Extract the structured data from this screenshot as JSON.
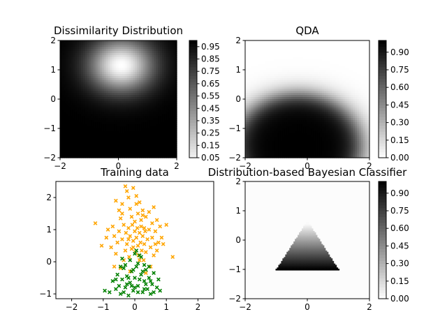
{
  "figure": {
    "background": "#ffffff",
    "line_color": "#000000"
  },
  "chart_data": [
    {
      "type": "heatmap",
      "title": "Dissimilarity Distribution",
      "xlim": [
        -2,
        2
      ],
      "ylim": [
        -2,
        2
      ],
      "xticks": [
        -2,
        0,
        2
      ],
      "yticks": [
        -2,
        -1,
        0,
        1,
        2
      ],
      "colormap": "gray (0 = white, 1 = black)",
      "field": "1 - exp(-((x - 0.1)^2 / 1.3 + (y - 1.15)^2 / 0.9))",
      "colorbar": {
        "range": [
          0.05,
          1.0
        ],
        "ticks": [
          "0.05",
          "0.15",
          "0.25",
          "0.35",
          "0.45",
          "0.55",
          "0.65",
          "0.75",
          "0.85",
          "0.95"
        ]
      }
    },
    {
      "type": "heatmap",
      "title": "QDA",
      "xlim": [
        -2,
        2
      ],
      "ylim": [
        -2,
        2
      ],
      "xticks": [
        -2,
        0,
        2
      ],
      "yticks": [
        -2,
        -1,
        0,
        1,
        2
      ],
      "colormap": "gray_r (0 = white, 1 = black)",
      "field": "high (dark) near (-0.3, -1.6), fading to 0 outside radius ~2",
      "colorbar": {
        "range": [
          0.0,
          1.0
        ],
        "ticks": [
          "0.00",
          "0.15",
          "0.30",
          "0.45",
          "0.60",
          "0.75",
          "0.90"
        ]
      }
    },
    {
      "type": "scatter",
      "title": "Training data",
      "xlim": [
        -2.5,
        2.5
      ],
      "ylim": [
        -1.15,
        2.5
      ],
      "xticks": [
        -2,
        -1,
        0,
        1,
        2
      ],
      "yticks": [
        -1,
        0,
        1,
        2
      ],
      "marker": "x",
      "series": [
        {
          "color": "#ffa500",
          "points": [
            [
              -0.6,
              1.9
            ],
            [
              -0.5,
              1.6
            ],
            [
              -0.45,
              1.35
            ],
            [
              -0.4,
              1.5
            ],
            [
              -0.3,
              2.35
            ],
            [
              -0.25,
              2.2
            ],
            [
              -0.2,
              2.0
            ],
            [
              -0.15,
              1.65
            ],
            [
              -0.1,
              1.4
            ],
            [
              -0.05,
              2.3
            ],
            [
              0.0,
              1.25
            ],
            [
              0.05,
              1.8
            ],
            [
              0.1,
              1.5
            ],
            [
              0.15,
              1.85
            ],
            [
              0.2,
              1.3
            ],
            [
              0.25,
              1.6
            ],
            [
              0.3,
              1.05
            ],
            [
              0.35,
              1.4
            ],
            [
              0.45,
              1.55
            ],
            [
              0.55,
              1.2
            ],
            [
              0.6,
              1.7
            ],
            [
              0.65,
              0.95
            ],
            [
              0.7,
              1.3
            ],
            [
              0.8,
              1.1
            ],
            [
              0.85,
              0.75
            ],
            [
              0.9,
              0.55
            ],
            [
              1.0,
              1.15
            ],
            [
              1.2,
              0.15
            ],
            [
              -1.25,
              1.2
            ],
            [
              -1.05,
              0.5
            ],
            [
              -0.9,
              0.75
            ],
            [
              -0.85,
              1.0
            ],
            [
              -0.75,
              0.45
            ],
            [
              -0.7,
              1.1
            ],
            [
              -0.65,
              0.8
            ],
            [
              -0.6,
              0.25
            ],
            [
              -0.55,
              0.6
            ],
            [
              -0.5,
              0.95
            ],
            [
              -0.45,
              -0.2
            ],
            [
              -0.4,
              0.7
            ],
            [
              -0.35,
              1.15
            ],
            [
              -0.3,
              0.35
            ],
            [
              -0.28,
              0.9
            ],
            [
              -0.25,
              0.55
            ],
            [
              -0.2,
              1.05
            ],
            [
              -0.18,
              0.15
            ],
            [
              -0.15,
              0.8
            ],
            [
              -0.1,
              0.4
            ],
            [
              -0.08,
              1.15
            ],
            [
              -0.05,
              0.65
            ],
            [
              0.0,
              0.95
            ],
            [
              0.02,
              0.3
            ],
            [
              0.05,
              0.75
            ],
            [
              0.08,
              1.05
            ],
            [
              0.1,
              0.5
            ],
            [
              0.12,
              0.2
            ],
            [
              0.15,
              0.9
            ],
            [
              0.18,
              0.6
            ],
            [
              0.2,
              1.1
            ],
            [
              0.22,
              0.35
            ],
            [
              0.25,
              0.8
            ],
            [
              0.28,
              0.05
            ],
            [
              0.3,
              0.55
            ],
            [
              0.33,
              0.95
            ],
            [
              0.35,
              0.3
            ],
            [
              0.4,
              0.7
            ],
            [
              0.45,
              1.0
            ],
            [
              0.5,
              0.45
            ],
            [
              0.55,
              0.75
            ],
            [
              0.6,
              0.2
            ],
            [
              0.65,
              0.55
            ],
            [
              0.7,
              0.35
            ],
            [
              0.75,
              0.6
            ],
            [
              0.5,
              -0.15
            ],
            [
              -0.65,
              -0.15
            ],
            [
              -0.15,
              -0.3
            ],
            [
              0.35,
              -0.35
            ],
            [
              -0.35,
              0.05
            ],
            [
              0.15,
              0.05
            ],
            [
              -0.05,
              0.45
            ],
            [
              -0.2,
              0.7
            ],
            [
              0.25,
              1.45
            ],
            [
              -0.4,
              1.8
            ],
            [
              0.05,
              2.05
            ]
          ]
        },
        {
          "color": "#008000",
          "points": [
            [
              -0.95,
              -0.9
            ],
            [
              -0.8,
              -0.95
            ],
            [
              -0.7,
              -0.6
            ],
            [
              -0.6,
              -0.85
            ],
            [
              -0.55,
              -0.4
            ],
            [
              -0.5,
              -0.75
            ],
            [
              -0.45,
              -1.0
            ],
            [
              -0.4,
              -0.55
            ],
            [
              -0.35,
              -0.2
            ],
            [
              -0.3,
              -0.8
            ],
            [
              -0.25,
              -0.45
            ],
            [
              -0.2,
              -1.05
            ],
            [
              -0.15,
              -0.65
            ],
            [
              -0.1,
              -0.3
            ],
            [
              -0.05,
              -0.9
            ],
            [
              0.0,
              -0.5
            ],
            [
              0.05,
              -0.15
            ],
            [
              0.1,
              -0.75
            ],
            [
              0.15,
              0.2
            ],
            [
              0.2,
              -0.4
            ],
            [
              0.25,
              -0.95
            ],
            [
              0.3,
              -0.6
            ],
            [
              0.35,
              -0.25
            ],
            [
              0.4,
              -0.85
            ],
            [
              0.45,
              -0.5
            ],
            [
              0.5,
              -1.0
            ],
            [
              0.55,
              -0.7
            ],
            [
              0.6,
              -0.35
            ],
            [
              0.7,
              -0.8
            ],
            [
              0.75,
              -0.55
            ],
            [
              0.8,
              -0.9
            ],
            [
              -0.4,
              0.1
            ],
            [
              -0.3,
              -0.1
            ],
            [
              -0.15,
              0.05
            ],
            [
              0.0,
              0.25
            ],
            [
              0.1,
              -0.05
            ],
            [
              0.2,
              0.15
            ],
            [
              0.3,
              -0.1
            ],
            [
              0.05,
              0.35
            ],
            [
              -0.05,
              -0.25
            ],
            [
              -0.25,
              -0.7
            ],
            [
              -0.45,
              -0.15
            ],
            [
              0.25,
              -0.3
            ],
            [
              0.45,
              -0.15
            ],
            [
              0.15,
              -0.55
            ],
            [
              -0.1,
              -0.75
            ],
            [
              0.35,
              -0.7
            ],
            [
              -0.35,
              -0.95
            ],
            [
              0.6,
              -0.95
            ],
            [
              0.1,
              -0.95
            ],
            [
              -0.6,
              -0.55
            ],
            [
              0.0,
              -0.8
            ],
            [
              -0.2,
              -0.5
            ],
            [
              0.3,
              -0.85
            ],
            [
              0.5,
              -0.6
            ]
          ]
        }
      ]
    },
    {
      "type": "heatmap",
      "title": "Distribution-based Bayesian Classifier",
      "xlim": [
        -2,
        2
      ],
      "ylim": [
        -2,
        2
      ],
      "xticks": [
        -2,
        0,
        2
      ],
      "yticks": [
        -2,
        -1,
        0,
        1,
        2
      ],
      "colormap": "gray_r (0 = white, 1 = black)",
      "field": "triangle with vertices (-1,-1), (1,-1), (0,0.65); value 1 at base fading toward apex, 0 outside",
      "colorbar": {
        "range": [
          0.0,
          1.0
        ],
        "ticks": [
          "0.00",
          "0.15",
          "0.30",
          "0.45",
          "0.60",
          "0.75",
          "0.90"
        ]
      }
    }
  ]
}
